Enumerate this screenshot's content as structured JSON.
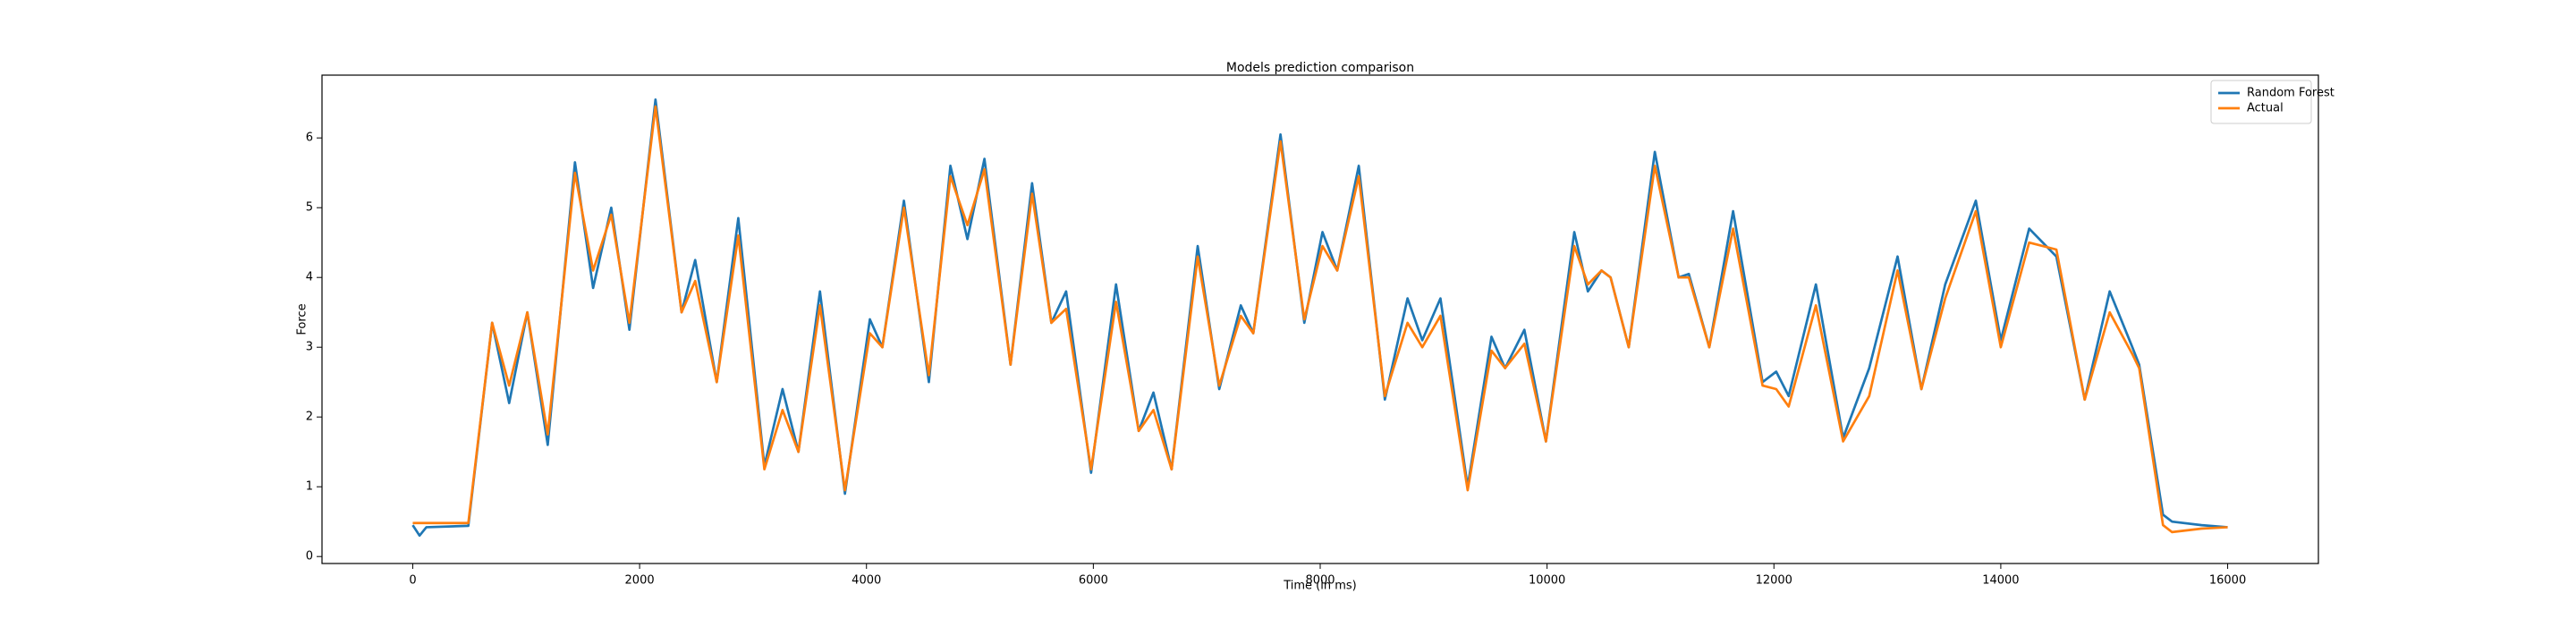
{
  "chart_data": {
    "type": "line",
    "title": "Models prediction comparison",
    "x_label": "Time (in ms)",
    "y_label": "Force",
    "x": [
      0,
      60,
      120,
      490,
      700,
      850,
      1010,
      1190,
      1430,
      1590,
      1750,
      1910,
      2140,
      2370,
      2490,
      2680,
      2870,
      3100,
      3260,
      3400,
      3590,
      3810,
      4030,
      4140,
      4330,
      4550,
      4740,
      4890,
      5040,
      5270,
      5460,
      5630,
      5760,
      5980,
      6200,
      6400,
      6530,
      6690,
      6920,
      7110,
      7300,
      7410,
      7650,
      7860,
      8020,
      8150,
      8340,
      8570,
      8770,
      8900,
      9060,
      9300,
      9510,
      9630,
      9800,
      9990,
      10240,
      10360,
      10480,
      10560,
      10720,
      10950,
      11160,
      11250,
      11430,
      11640,
      11900,
      12020,
      12130,
      12370,
      12610,
      12840,
      13090,
      13300,
      13510,
      13780,
      14000,
      14250,
      14490,
      14740,
      14960,
      15160,
      15220,
      15430,
      15510,
      15770,
      16000
    ],
    "series": [
      {
        "name": "Random Forest",
        "color": "#1f77b4",
        "values": [
          0.45,
          0.3,
          0.42,
          0.44,
          3.35,
          2.2,
          3.5,
          1.6,
          5.65,
          3.85,
          5.0,
          3.25,
          6.55,
          3.5,
          4.25,
          2.5,
          4.85,
          1.3,
          2.4,
          1.5,
          3.8,
          0.9,
          3.4,
          3.0,
          5.1,
          2.5,
          5.6,
          4.55,
          5.7,
          2.75,
          5.35,
          3.35,
          3.8,
          1.2,
          3.9,
          1.8,
          2.35,
          1.25,
          4.45,
          2.4,
          3.6,
          3.2,
          6.05,
          3.35,
          4.65,
          4.1,
          5.6,
          2.25,
          3.7,
          3.1,
          3.7,
          1.0,
          3.15,
          2.7,
          3.25,
          1.65,
          4.65,
          3.8,
          4.1,
          4.0,
          3.0,
          5.8,
          4.0,
          4.05,
          3.0,
          4.95,
          2.5,
          2.65,
          2.3,
          3.9,
          1.7,
          2.7,
          4.3,
          2.4,
          3.9,
          5.1,
          3.1,
          4.7,
          4.3,
          2.25,
          3.8,
          3.0,
          2.75,
          0.6,
          0.5,
          0.45,
          0.42
        ]
      },
      {
        "name": "Actual",
        "color": "#ff7f0e",
        "values": [
          0.48,
          0.48,
          0.48,
          0.48,
          3.35,
          2.45,
          3.5,
          1.75,
          5.5,
          4.1,
          4.9,
          3.35,
          6.45,
          3.5,
          3.95,
          2.5,
          4.6,
          1.25,
          2.1,
          1.5,
          3.6,
          0.95,
          3.2,
          3.0,
          5.0,
          2.6,
          5.45,
          4.75,
          5.55,
          2.75,
          5.2,
          3.35,
          3.55,
          1.25,
          3.65,
          1.8,
          2.1,
          1.25,
          4.3,
          2.45,
          3.45,
          3.2,
          5.95,
          3.4,
          4.45,
          4.1,
          5.45,
          2.3,
          3.35,
          3.0,
          3.45,
          0.95,
          2.95,
          2.7,
          3.05,
          1.65,
          4.45,
          3.9,
          4.1,
          4.0,
          3.0,
          5.6,
          4.0,
          4.0,
          3.0,
          4.7,
          2.45,
          2.4,
          2.15,
          3.6,
          1.65,
          2.3,
          4.1,
          2.4,
          3.7,
          4.95,
          3.0,
          4.5,
          4.4,
          2.25,
          3.5,
          2.9,
          2.7,
          0.45,
          0.35,
          0.4,
          0.42
        ]
      }
    ],
    "xlim": [
      -800,
      16800
    ],
    "ylim": [
      -0.1,
      6.9
    ],
    "xticks": [
      0,
      2000,
      4000,
      6000,
      8000,
      10000,
      12000,
      14000,
      16000
    ],
    "yticks": [
      0,
      1,
      2,
      3,
      4,
      5,
      6
    ],
    "grid": false,
    "legend": "upper right"
  }
}
